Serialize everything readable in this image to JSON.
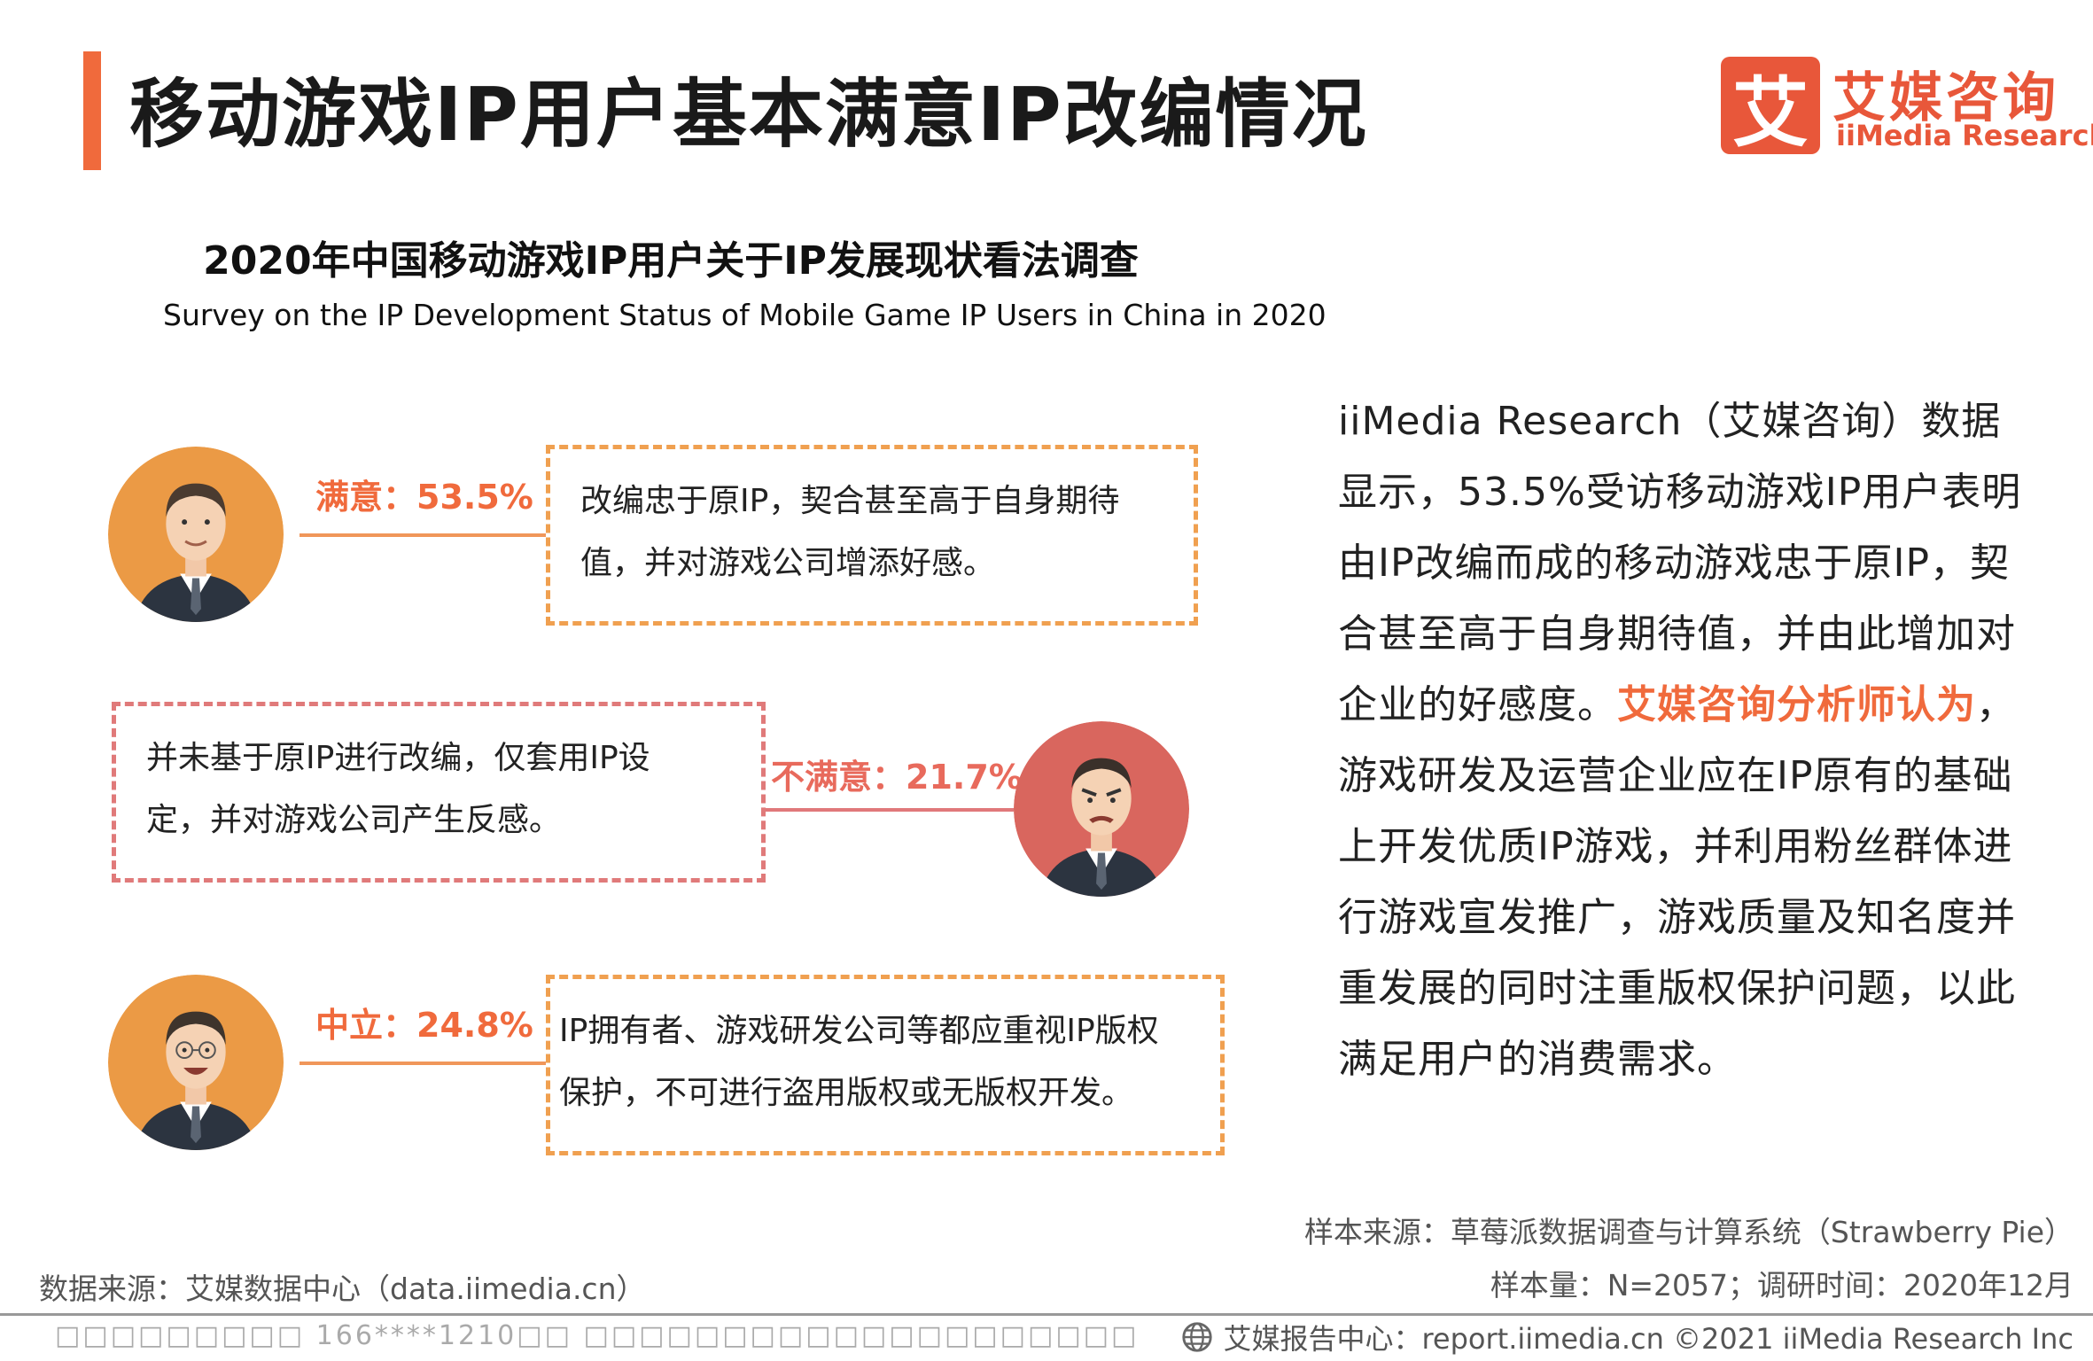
{
  "header": {
    "title": "移动游戏IP用户基本满意IP改编情况",
    "logo_mark": "艾",
    "logo_cn": "艾媒咨询",
    "logo_en": "iiMedia Research"
  },
  "chart": {
    "title": "2020年中国移动游戏IP用户关于IP发展现状看法调查",
    "subtitle": "Survey on the IP Development Status of Mobile Game IP Users in China in 2020"
  },
  "chart_data": {
    "type": "table",
    "title": "2020年中国移动游戏IP用户关于IP发展现状看法调查",
    "subtitle": "Survey on the IP Development Status of Mobile Game IP Users in China in 2020",
    "categories": [
      "满意",
      "不满意",
      "中立"
    ],
    "values": [
      53.5,
      21.7,
      24.8
    ],
    "unit": "%"
  },
  "items": [
    {
      "label": "满意：53.5%",
      "desc_line1": "改编忠于原IP，契合甚至高于自身期待",
      "desc_line2": "值，并对游戏公司增添好感。"
    },
    {
      "label": "不满意：21.7%",
      "desc_line1": "并未基于原IP进行改编，仅套用IP设",
      "desc_line2": "定，并对游戏公司产生反感。"
    },
    {
      "label": "中立：24.8%",
      "desc_line1": "IP拥有者、游戏研发公司等都应重视IP版权",
      "desc_line2": "保护，不可进行盗用版权或无版权开发。"
    }
  ],
  "analysis": {
    "part1": "iiMedia Research（艾媒咨询）数据显示，53.5%受访移动游戏IP用户表明由IP改编而成的移动游戏忠于原IP，契合甚至高于自身期待值，并由此增加对企业的好感度。",
    "highlight": "艾媒咨询分析师认为",
    "part2": "，游戏研发及运营企业应在IP原有的基础上开发优质IP游戏，并利用粉丝群体进行游戏宣发推广，游戏质量及知名度并重发展的同时注重版权保护问题，以此满足用户的消费需求。"
  },
  "sources": {
    "sample_source": "样本来源：草莓派数据调查与计算系统（Strawberry Pie）",
    "sample_size": "样本量：N=2057；调研时间：2020年12月",
    "data_source": "数据来源：艾媒数据中心（data.iimedia.cn）"
  },
  "footer": {
    "left": "□□□□□□□□□ 166****1210□□ □□□□□□□□□□□□□□□□□□□□",
    "right": "艾媒报告中心：report.iimedia.cn  ©2021  iiMedia Research  Inc"
  },
  "colors": {
    "accent": "#f06a3c",
    "logo": "#e8573a",
    "dash_orange": "#f0a050",
    "dash_red": "#e07a7a",
    "avatar_orange": "#eb9a45",
    "avatar_red": "#d9665e"
  }
}
